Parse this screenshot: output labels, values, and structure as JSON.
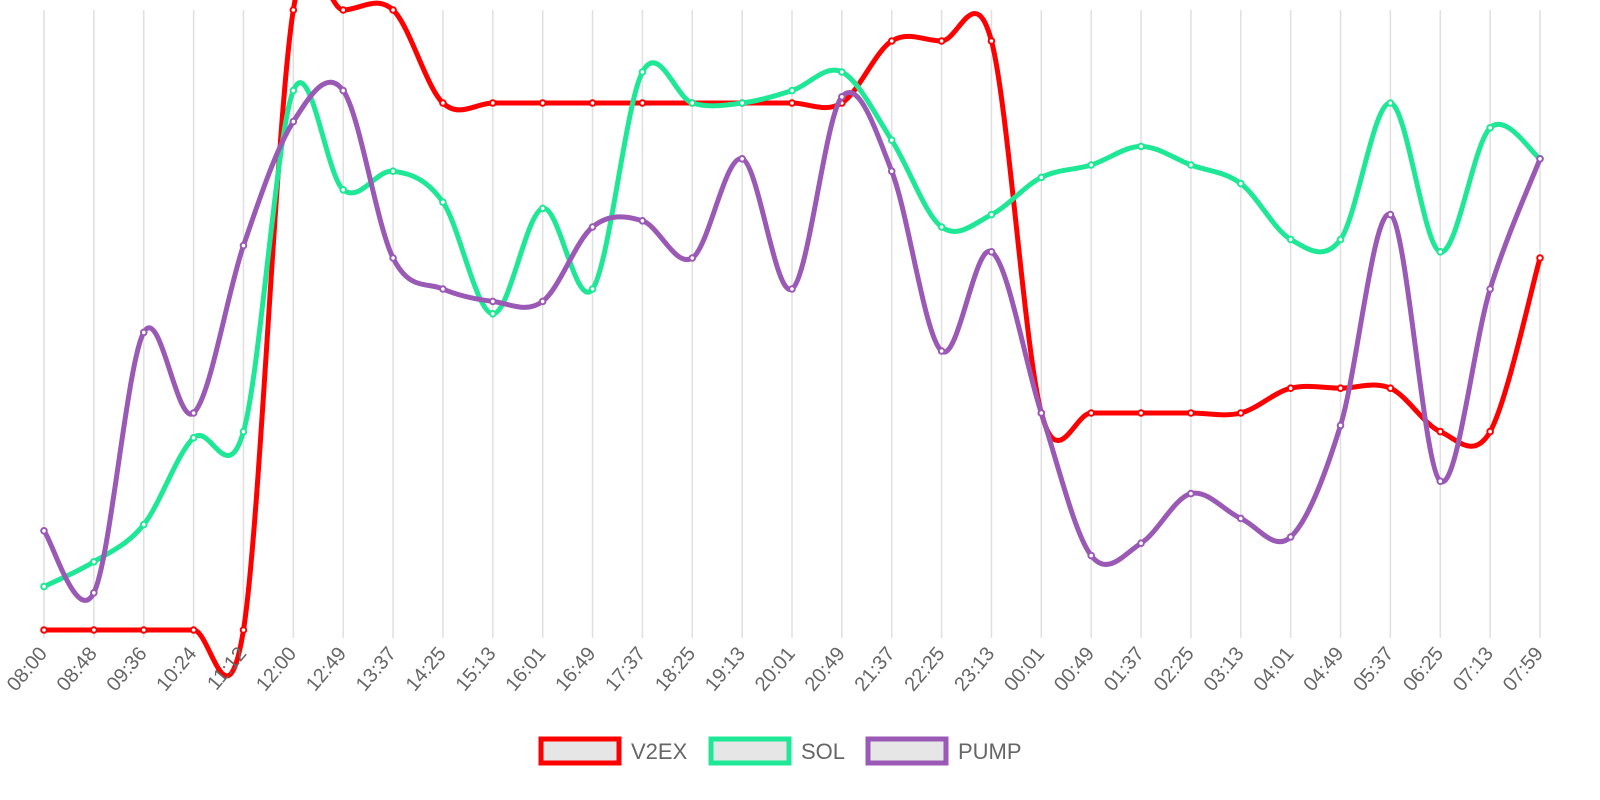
{
  "chart_data": {
    "type": "line",
    "title": "",
    "xlabel": "",
    "ylabel": "",
    "y_axis_labels_shown": false,
    "grid": "vertical",
    "legend_position": "bottom",
    "ylim": [
      0,
      100
    ],
    "x": [
      "08:00",
      "08:48",
      "09:36",
      "10:24",
      "11:12",
      "12:00",
      "12:49",
      "13:37",
      "14:25",
      "15:13",
      "16:01",
      "16:49",
      "17:37",
      "18:25",
      "19:13",
      "20:01",
      "20:49",
      "21:37",
      "22:25",
      "23:13",
      "00:01",
      "00:49",
      "01:37",
      "02:25",
      "03:13",
      "04:01",
      "04:49",
      "05:37",
      "06:25",
      "07:13",
      "07:59"
    ],
    "series": [
      {
        "name": "V2EX",
        "color": "#ff0000",
        "values": [
          0,
          0,
          0,
          0,
          0,
          100,
          100,
          100,
          85,
          85,
          85,
          85,
          85,
          85,
          85,
          85,
          85,
          95,
          95,
          95,
          35,
          35,
          35,
          35,
          35,
          39,
          39,
          39,
          32,
          32,
          60
        ]
      },
      {
        "name": "SOL",
        "color": "#1ee895",
        "values": [
          7,
          11,
          17,
          31,
          32,
          87,
          71,
          74,
          69,
          51,
          68,
          55,
          90,
          85,
          85,
          87,
          90,
          79,
          65,
          67,
          73,
          75,
          78,
          75,
          72,
          63,
          63,
          85,
          61,
          81,
          76
        ]
      },
      {
        "name": "PUMP",
        "color": "#9b59b6",
        "values": [
          16,
          6,
          48,
          35,
          62,
          82,
          87,
          60,
          55,
          53,
          53,
          65,
          66,
          60,
          76,
          55,
          86,
          74,
          45,
          61,
          35,
          12,
          14,
          22,
          18,
          15,
          33,
          67,
          24,
          55,
          76
        ]
      }
    ]
  }
}
